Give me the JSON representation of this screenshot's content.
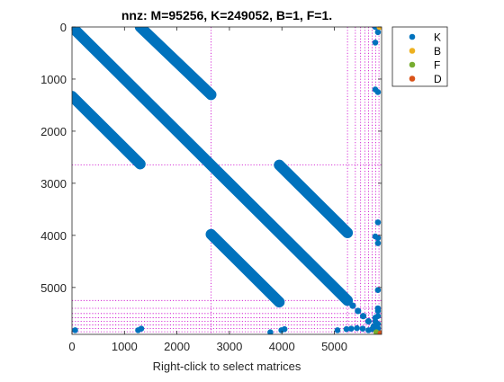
{
  "title": "nnz: M=95256, K=249052, B=1, F=1.",
  "xlabel": "Right-click to select matrices",
  "colors": {
    "K": "#0072BD",
    "B": "#EDB120",
    "F": "#77AC30",
    "D": "#D95319",
    "partition": "#CC00CC"
  },
  "chart_data": {
    "type": "scatter",
    "title": "nnz: M=95256, K=249052, B=1, F=1.",
    "xlabel": "Right-click to select matrices",
    "ylabel": "",
    "xlim": [
      0,
      5900
    ],
    "ylim": [
      5900,
      0
    ],
    "y_axis_reversed": true,
    "xticks": [
      0,
      1000,
      2000,
      3000,
      4000,
      5000
    ],
    "yticks": [
      0,
      1000,
      2000,
      3000,
      4000,
      5000
    ],
    "xtick_labels": [
      "0",
      "1000",
      "2000",
      "3000",
      "4000",
      "5000"
    ],
    "ytick_labels": [
      "0",
      "1000",
      "2000",
      "3000",
      "4000",
      "5000"
    ],
    "grid": false,
    "legend_position": "top-right, outside plot",
    "legend": [
      "K",
      "B",
      "F",
      "D"
    ],
    "series": [
      {
        "name": "K",
        "color": "#0072BD",
        "bands": [
          {
            "start": [
              0,
              0
            ],
            "end": [
              5250,
              5250
            ]
          },
          {
            "start": [
              1300,
              0
            ],
            "end": [
              2650,
              1300
            ]
          },
          {
            "start": [
              0,
              1330
            ],
            "end": [
              1300,
              2630
            ]
          },
          {
            "start": [
              3950,
              2650
            ],
            "end": [
              5250,
              3950
            ]
          },
          {
            "start": [
              2650,
              3980
            ],
            "end": [
              3950,
              5280
            ]
          }
        ],
        "tail": [
          [
            5250,
            5250
          ],
          [
            5350,
            5350
          ],
          [
            5450,
            5450
          ],
          [
            5550,
            5550
          ],
          [
            5650,
            5650
          ],
          [
            5750,
            5750
          ],
          [
            5820,
            5820
          ]
        ],
        "points": [
          [
            5830,
            100
          ],
          [
            5830,
            1250
          ],
          [
            5830,
            3750
          ],
          [
            5830,
            4050
          ],
          [
            5830,
            4150
          ],
          [
            5830,
            5050
          ],
          [
            5830,
            5400
          ],
          [
            5830,
            5450
          ],
          [
            5830,
            5550
          ],
          [
            5830,
            5700
          ],
          [
            5830,
            5780
          ],
          [
            5780,
            0
          ],
          [
            5780,
            300
          ],
          [
            5780,
            1200
          ],
          [
            5780,
            4020
          ],
          [
            5780,
            5580
          ],
          [
            5780,
            5650
          ],
          [
            60,
            5820
          ],
          [
            1260,
            5820
          ],
          [
            1320,
            5790
          ],
          [
            3780,
            5860
          ],
          [
            3990,
            5820
          ],
          [
            4050,
            5800
          ],
          [
            5060,
            5820
          ],
          [
            5230,
            5800
          ],
          [
            5320,
            5790
          ],
          [
            5430,
            5780
          ],
          [
            5540,
            5790
          ],
          [
            5650,
            5820
          ],
          [
            5720,
            5800
          ]
        ]
      },
      {
        "name": "B",
        "color": "#EDB120",
        "points": [
          [
            5860,
            0
          ]
        ]
      },
      {
        "name": "F",
        "color": "#77AC30",
        "points": [
          [
            5800,
            5860
          ]
        ]
      },
      {
        "name": "D",
        "color": "#D95319",
        "points": [
          [
            5880,
            5880
          ]
        ]
      }
    ],
    "partition_lines": {
      "x": [
        2650,
        5250,
        5400,
        5500,
        5580,
        5650,
        5720,
        5790,
        5850
      ],
      "y": [
        2650,
        5250,
        5400,
        5500,
        5580,
        5650,
        5720,
        5790,
        5850
      ]
    }
  }
}
